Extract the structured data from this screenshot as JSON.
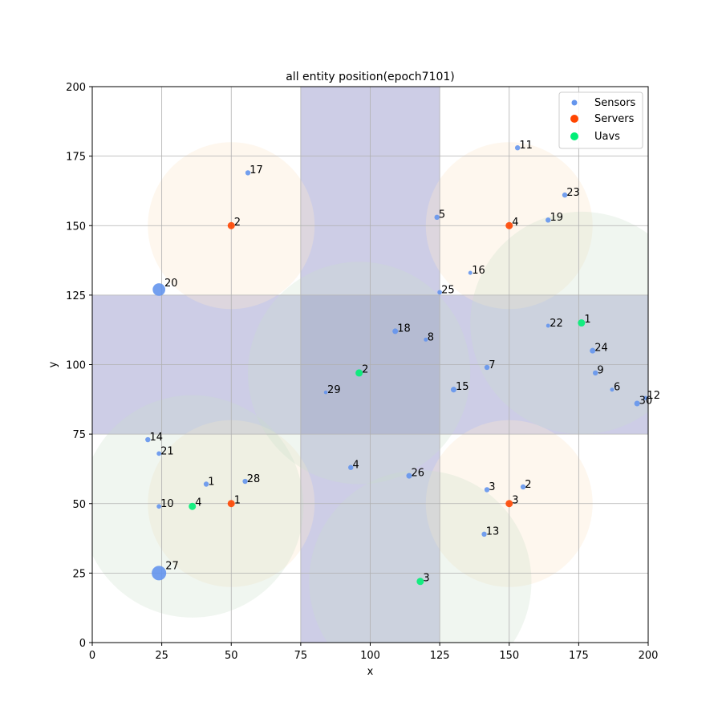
{
  "chart_data": {
    "type": "scatter",
    "title": "all entity position(epoch7101)",
    "xlabel": "x",
    "ylabel": "y",
    "xlim": [
      0,
      200
    ],
    "ylim": [
      0,
      200
    ],
    "grid": true,
    "xticks": [
      "0",
      "25",
      "50",
      "75",
      "100",
      "125",
      "150",
      "175",
      "200"
    ],
    "yticks": [
      "0",
      "25",
      "50",
      "75",
      "100",
      "125",
      "150",
      "175",
      "200"
    ],
    "legend": {
      "placement": "top-right",
      "entries": [
        "Sensors",
        "Servers",
        "Uavs"
      ]
    },
    "colors": {
      "sensors": "#6495ed",
      "servers": "#ff4500",
      "uavs": "#00ee76",
      "band": "#7b7bbd",
      "server_range": "#fde9cf",
      "uav_range": "#c9dfc9",
      "grid": "#b0b0b0"
    },
    "bands": [
      {
        "x": [
          75,
          125
        ],
        "y": [
          0,
          200
        ]
      },
      {
        "x": [
          0,
          200
        ],
        "y": [
          75,
          125
        ]
      }
    ],
    "series": [
      {
        "name": "Sensors",
        "points": [
          {
            "label": "1",
            "x": 41,
            "y": 57,
            "size": 1
          },
          {
            "label": "2",
            "x": 155,
            "y": 56,
            "size": 1
          },
          {
            "label": "3",
            "x": 142,
            "y": 55,
            "size": 1
          },
          {
            "label": "4",
            "x": 93,
            "y": 63,
            "size": 1
          },
          {
            "label": "5",
            "x": 124,
            "y": 153,
            "size": 1
          },
          {
            "label": "6",
            "x": 187,
            "y": 91,
            "size": 0.6
          },
          {
            "label": "7",
            "x": 142,
            "y": 99,
            "size": 1
          },
          {
            "label": "8",
            "x": 120,
            "y": 109,
            "size": 0.6
          },
          {
            "label": "9",
            "x": 181,
            "y": 97,
            "size": 1
          },
          {
            "label": "10",
            "x": 24,
            "y": 49,
            "size": 0.8
          },
          {
            "label": "11",
            "x": 153,
            "y": 178,
            "size": 1
          },
          {
            "label": "12",
            "x": 199,
            "y": 88,
            "size": 0.6
          },
          {
            "label": "13",
            "x": 141,
            "y": 39,
            "size": 1
          },
          {
            "label": "14",
            "x": 20,
            "y": 73,
            "size": 1
          },
          {
            "label": "15",
            "x": 130,
            "y": 91,
            "size": 1.2
          },
          {
            "label": "16",
            "x": 136,
            "y": 133,
            "size": 0.6
          },
          {
            "label": "17",
            "x": 56,
            "y": 169,
            "size": 1
          },
          {
            "label": "18",
            "x": 109,
            "y": 112,
            "size": 1.2
          },
          {
            "label": "19",
            "x": 164,
            "y": 152,
            "size": 1
          },
          {
            "label": "20",
            "x": 24,
            "y": 127,
            "size": 6
          },
          {
            "label": "21",
            "x": 24,
            "y": 68,
            "size": 0.8
          },
          {
            "label": "22",
            "x": 164,
            "y": 114,
            "size": 0.6
          },
          {
            "label": "23",
            "x": 170,
            "y": 161,
            "size": 1
          },
          {
            "label": "24",
            "x": 180,
            "y": 105,
            "size": 1.2
          },
          {
            "label": "25",
            "x": 125,
            "y": 126,
            "size": 0.8
          },
          {
            "label": "26",
            "x": 114,
            "y": 60,
            "size": 1.2
          },
          {
            "label": "27",
            "x": 24,
            "y": 25,
            "size": 8
          },
          {
            "label": "28",
            "x": 55,
            "y": 58,
            "size": 1
          },
          {
            "label": "29",
            "x": 84,
            "y": 90,
            "size": 0.5
          },
          {
            "label": "30",
            "x": 196,
            "y": 86,
            "size": 1.2
          }
        ]
      },
      {
        "name": "Servers",
        "range": 30,
        "points": [
          {
            "label": "1",
            "x": 50,
            "y": 50
          },
          {
            "label": "2",
            "x": 50,
            "y": 150
          },
          {
            "label": "3",
            "x": 150,
            "y": 50
          },
          {
            "label": "4",
            "x": 150,
            "y": 150
          }
        ]
      },
      {
        "name": "Uavs",
        "range": 40,
        "points": [
          {
            "label": "1",
            "x": 176,
            "y": 115
          },
          {
            "label": "2",
            "x": 96,
            "y": 97
          },
          {
            "label": "3",
            "x": 118,
            "y": 22
          },
          {
            "label": "4",
            "x": 36,
            "y": 49
          }
        ]
      }
    ]
  }
}
